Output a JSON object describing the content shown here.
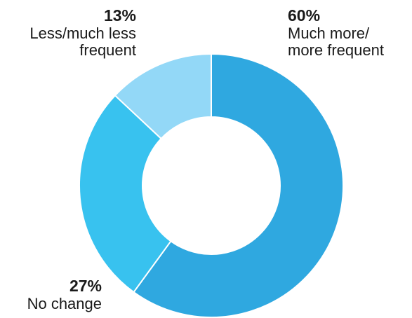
{
  "chart_data": {
    "type": "pie",
    "donut": true,
    "title": "",
    "start_angle": "12 o'clock",
    "direction": "clockwise",
    "slices": [
      {
        "label_lines": [
          "Much more/",
          "more frequent"
        ],
        "value": 60,
        "value_label": "60%",
        "color": "#2FA8E0"
      },
      {
        "label_lines": [
          "No change"
        ],
        "value": 27,
        "value_label": "27%",
        "color": "#38C2EF"
      },
      {
        "label_lines": [
          "Less/much less",
          "frequent"
        ],
        "value": 13,
        "value_label": "13%",
        "color": "#93D8F7"
      }
    ],
    "separator_color": "#ffffff"
  }
}
